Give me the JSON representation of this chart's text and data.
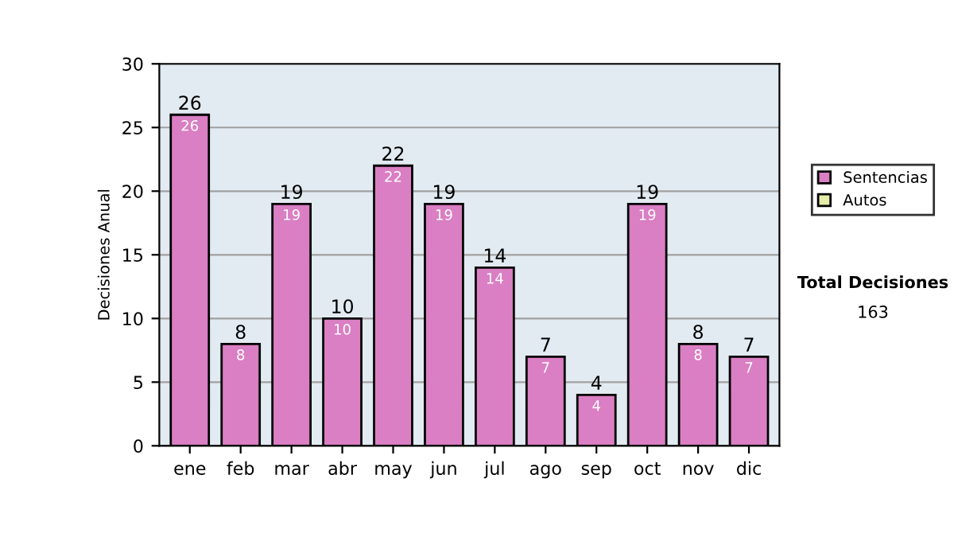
{
  "chart_data": {
    "type": "bar",
    "ylabel": "Decisiones Anual",
    "categories": [
      "ene",
      "feb",
      "mar",
      "abr",
      "may",
      "jun",
      "jul",
      "ago",
      "sep",
      "oct",
      "nov",
      "dic"
    ],
    "series": [
      {
        "name": "Sentencias",
        "color": "#da7fc3",
        "values": [
          26,
          8,
          19,
          10,
          22,
          19,
          14,
          7,
          4,
          19,
          8,
          7
        ],
        "value_labels": [
          "26",
          "8",
          "19",
          "10",
          "22",
          "19",
          "14",
          "7",
          "4",
          "19",
          "8",
          "7"
        ]
      },
      {
        "name": "Autos",
        "color": "#e4eca8",
        "values": [
          null,
          null,
          null,
          null,
          null,
          null,
          null,
          null,
          null,
          null,
          null,
          null
        ]
      }
    ],
    "stacked": true,
    "totals": [
      "26",
      "8",
      "19",
      "10",
      "22",
      "19",
      "14",
      "7",
      "4",
      "19",
      "8",
      "7"
    ],
    "ylim": [
      0,
      30
    ],
    "yticks": [
      0,
      5,
      10,
      15,
      20,
      25,
      30
    ],
    "grid": "y",
    "legend": "right",
    "annotations": [
      "Total Decisiones",
      "163"
    ]
  }
}
